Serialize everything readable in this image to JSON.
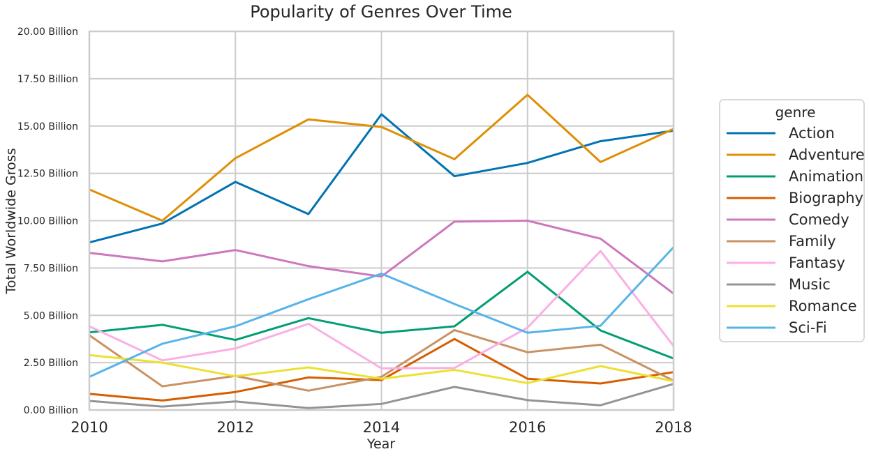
{
  "chart_data": {
    "type": "line",
    "title": "Popularity of Genres Over Time",
    "xlabel": "Year",
    "ylabel": "Total Worldwide Gross",
    "xlim": [
      2010,
      2018
    ],
    "ylim": [
      0,
      20
    ],
    "x_ticks": [
      "2010",
      "2012",
      "2014",
      "2016",
      "2018"
    ],
    "y_ticks": [
      "0.00 Billion",
      "2.50 Billion",
      "5.00 Billion",
      "7.50 Billion",
      "10.00 Billion",
      "12.50 Billion",
      "15.00 Billion",
      "17.50 Billion",
      "20.00 Billion"
    ],
    "y_unit": "Billion",
    "grid": true,
    "legend_title": "genre",
    "legend_position": "right",
    "x": [
      2010,
      2011,
      2012,
      2013,
      2014,
      2015,
      2016,
      2017,
      2018
    ],
    "series": [
      {
        "name": "Action",
        "color": "#0173b2",
        "values": [
          8.85,
          9.85,
          12.05,
          10.35,
          15.62,
          12.35,
          13.05,
          14.2,
          14.75
        ]
      },
      {
        "name": "Adventure",
        "color": "#de8f05",
        "values": [
          11.65,
          10.0,
          13.3,
          15.35,
          14.95,
          13.25,
          16.65,
          13.1,
          14.85
        ]
      },
      {
        "name": "Animation",
        "color": "#029e73",
        "values": [
          4.1,
          4.5,
          3.7,
          4.85,
          4.08,
          4.42,
          7.3,
          4.2,
          2.72
        ]
      },
      {
        "name": "Biography",
        "color": "#d55e00",
        "values": [
          0.85,
          0.5,
          0.95,
          1.72,
          1.58,
          3.75,
          1.65,
          1.4,
          2.0
        ]
      },
      {
        "name": "Comedy",
        "color": "#cc78bc",
        "values": [
          8.3,
          7.85,
          8.45,
          7.6,
          7.05,
          9.95,
          10.0,
          9.05,
          6.15
        ]
      },
      {
        "name": "Family",
        "color": "#ca9161",
        "values": [
          3.95,
          1.25,
          1.8,
          1.02,
          1.75,
          4.22,
          3.05,
          3.45,
          1.55
        ]
      },
      {
        "name": "Fantasy",
        "color": "#fbafe4",
        "values": [
          4.42,
          2.62,
          3.25,
          4.55,
          2.2,
          2.22,
          4.35,
          8.4,
          3.38
        ]
      },
      {
        "name": "Music",
        "color": "#949494",
        "values": [
          0.48,
          0.18,
          0.45,
          0.1,
          0.32,
          1.22,
          0.52,
          0.25,
          1.38
        ]
      },
      {
        "name": "Romance",
        "color": "#ece133",
        "values": [
          2.9,
          2.5,
          1.78,
          2.25,
          1.65,
          2.12,
          1.42,
          2.32,
          1.52
        ]
      },
      {
        "name": "Sci-Fi",
        "color": "#56b4e9",
        "values": [
          1.75,
          3.5,
          4.42,
          5.85,
          7.2,
          5.6,
          4.08,
          4.45,
          8.6
        ]
      }
    ]
  }
}
